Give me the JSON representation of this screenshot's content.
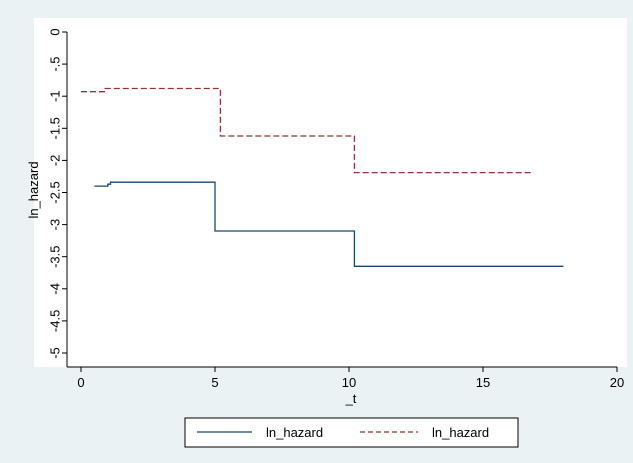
{
  "chart_data": {
    "type": "line",
    "xlabel": "_t",
    "ylabel": "ln_hazard",
    "xlim": [
      0,
      20
    ],
    "ylim": [
      -5,
      0
    ],
    "xticks": [
      0,
      5,
      10,
      15,
      20
    ],
    "yticks": [
      0,
      -0.5,
      -1,
      -1.5,
      -2,
      -2.5,
      -3,
      -3.5,
      -4,
      -4.5,
      -5
    ],
    "ytick_labels": [
      "0",
      "-.5",
      "-1",
      "-1.5",
      "-2",
      "-2.5",
      "-3",
      "-3.5",
      "-4",
      "-4.5",
      "-5"
    ],
    "grid": false,
    "legend_position": "bottom",
    "series": [
      {
        "name": "ln_hazard",
        "style": "solid",
        "color": "#1a476f",
        "x": [
          0.5,
          1.0,
          1.0,
          1.1,
          1.1,
          5.0,
          5.0,
          10.0,
          10.0,
          10.2,
          10.2,
          18.0
        ],
        "y": [
          -2.4,
          -2.4,
          -2.37,
          -2.37,
          -2.34,
          -2.34,
          -3.1,
          -3.1,
          -3.1,
          -3.1,
          -3.65,
          -3.65
        ]
      },
      {
        "name": "ln_hazard",
        "style": "dashed",
        "color": "#90353b",
        "x": [
          0.0,
          0.9,
          0.9,
          5.0,
          5.0,
          5.2,
          5.2,
          10.0,
          10.0,
          10.2,
          10.2,
          16.9
        ],
        "y": [
          -0.93,
          -0.93,
          -0.88,
          -0.88,
          -0.88,
          -0.88,
          -1.62,
          -1.62,
          -1.62,
          -1.62,
          -2.19,
          -2.19
        ]
      }
    ]
  }
}
